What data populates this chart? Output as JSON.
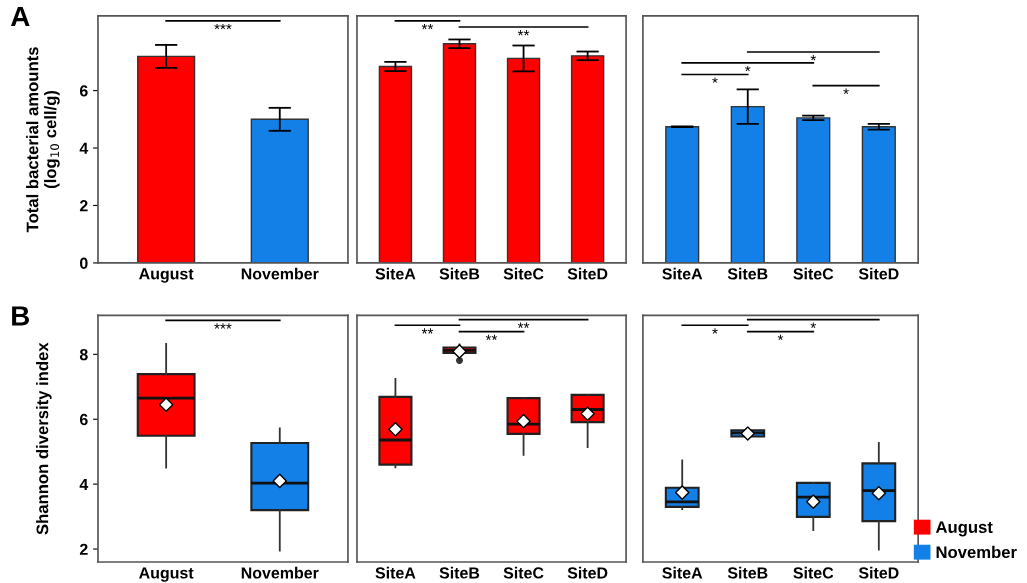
{
  "chart_data": [
    {
      "type": "bar",
      "categories": [
        "August",
        "November"
      ],
      "values": [
        7.19,
        5.0
      ],
      "colors": [
        "#ff0000",
        "#1380e8"
      ],
      "errors": [
        0.4,
        0.4
      ],
      "ylabel": "Total bacterial amounts\n(log$_{10}$ cell/g)",
      "ylim": [
        0,
        8.6
      ],
      "yticks": [
        0,
        2,
        4,
        6
      ],
      "grid": false,
      "annotations": [
        "***",
        "A"
      ]
    },
    {
      "type": "bar",
      "categories": [
        "SiteA",
        "SiteB",
        "SiteC",
        "SiteD"
      ],
      "values": [
        6.84,
        7.63,
        7.12,
        7.21
      ],
      "colors": [
        "#ff0000",
        "#ff0000",
        "#ff0000",
        "#ff0000"
      ],
      "errors": [
        0.16,
        0.15,
        0.45,
        0.15
      ],
      "ylim": [
        0,
        8.6
      ],
      "yticks": [
        0,
        2,
        4,
        6
      ],
      "tick_labels": "x",
      "grid": false,
      "annotations": [
        "**",
        "**"
      ]
    },
    {
      "type": "bar",
      "categories": [
        "SiteA",
        "SiteB",
        "SiteC",
        "SiteD"
      ],
      "values": [
        4.74,
        5.44,
        5.05,
        4.74
      ],
      "colors": [
        "#1380e8",
        "#1380e8",
        "#1380e8",
        "#1380e8"
      ],
      "errors": [
        0.01,
        0.6,
        0.08,
        0.1
      ],
      "ylim": [
        0,
        8.6
      ],
      "yticks": [
        0,
        2,
        4,
        6
      ],
      "tick_labels": "x",
      "grid": false,
      "annotations": [
        "*",
        "*",
        "*",
        "*"
      ]
    },
    {
      "type": "box",
      "categories": [
        "August",
        "November"
      ],
      "ylabel": "Shannon diversity index",
      "ylim": [
        1.6,
        9.2
      ],
      "yticks": [
        2,
        4,
        6,
        8
      ],
      "grid": false,
      "legend": "right",
      "annotations": [
        "***",
        "B"
      ],
      "series": [
        {
          "name": "August",
          "color": "#ff0000",
          "boxes": [
            {
              "low": 4.51,
              "q1": 5.49,
              "median": 6.65,
              "q3": 7.39,
              "high": 8.32,
              "mean": 6.45
            },
            null
          ]
        },
        {
          "name": "November",
          "color": "#1380e8",
          "boxes": [
            null,
            {
              "low": 1.95,
              "q1": 3.2,
              "median": 4.03,
              "q3": 5.27,
              "high": 5.72,
              "mean": 4.1
            }
          ]
        }
      ]
    },
    {
      "type": "box",
      "categories": [
        "SiteA",
        "SiteB",
        "SiteC",
        "SiteD"
      ],
      "ylim": [
        1.6,
        9.2
      ],
      "yticks": [
        2,
        4,
        6,
        8
      ],
      "tick_labels": "x",
      "grid": false,
      "annotations": [
        "**",
        "**",
        "**"
      ],
      "series": [
        {
          "color": "#ff0000",
          "boxes": [
            {
              "low": 4.52,
              "q1": 4.6,
              "median": 5.36,
              "q3": 6.69,
              "high": 7.24,
              "mean": 5.69
            },
            {
              "low": 8.02,
              "q1": 8.04,
              "median": 8.12,
              "q3": 8.21,
              "high": 8.31,
              "mean": 8.09,
              "outliers": [
                7.81
              ]
            },
            {
              "low": 4.9,
              "q1": 5.55,
              "median": 5.85,
              "q3": 6.65,
              "high": 6.65,
              "mean": 5.94
            },
            {
              "low": 5.14,
              "q1": 5.91,
              "median": 6.3,
              "q3": 6.75,
              "high": 6.75,
              "mean": 6.17
            }
          ]
        }
      ]
    },
    {
      "type": "box",
      "categories": [
        "SiteA",
        "SiteB",
        "SiteC",
        "SiteD"
      ],
      "ylim": [
        1.6,
        9.2
      ],
      "yticks": [
        2,
        4,
        6,
        8
      ],
      "tick_labels": "x",
      "grid": false,
      "annotations": [
        "*",
        "*",
        "*"
      ],
      "series": [
        {
          "color": "#1380e8",
          "boxes": [
            {
              "low": 3.23,
              "q1": 3.3,
              "median": 3.45,
              "q3": 3.89,
              "high": 4.73,
              "mean": 3.74
            },
            {
              "low": 5.42,
              "q1": 5.47,
              "median": 5.58,
              "q3": 5.66,
              "high": 5.7,
              "mean": 5.56
            },
            {
              "low": 2.58,
              "q1": 2.99,
              "median": 3.6,
              "q3": 4.04,
              "high": 4.04,
              "mean": 3.46
            },
            {
              "low": 1.98,
              "q1": 2.86,
              "median": 3.8,
              "q3": 4.64,
              "high": 5.27,
              "mean": 3.72
            }
          ]
        }
      ]
    }
  ]
}
